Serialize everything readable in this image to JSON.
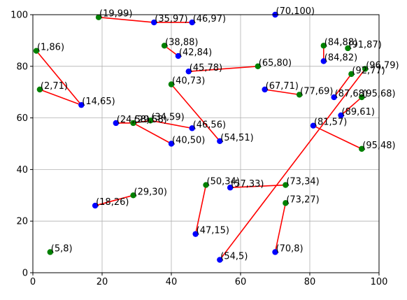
{
  "chart_data": {
    "type": "scatter",
    "title": "",
    "xlabel": "",
    "ylabel": "",
    "xlim": [
      0,
      100
    ],
    "ylim": [
      0,
      100
    ],
    "xticks": [
      0,
      20,
      40,
      60,
      80,
      100
    ],
    "yticks": [
      0,
      20,
      40,
      60,
      80,
      100
    ],
    "grid": true,
    "colors": {
      "blue": "#0000ff",
      "green": "#008000",
      "segment": "#ff0000",
      "grid": "#b0b0b0"
    },
    "blue_points": [
      [
        35,
        97
      ],
      [
        46,
        97
      ],
      [
        70,
        100
      ],
      [
        42,
        84
      ],
      [
        84,
        82
      ],
      [
        45,
        78
      ],
      [
        67,
        71
      ],
      [
        87,
        68
      ],
      [
        14,
        65
      ],
      [
        89,
        61
      ],
      [
        24,
        58
      ],
      [
        81,
        57
      ],
      [
        46,
        56
      ],
      [
        54,
        51
      ],
      [
        40,
        50
      ],
      [
        57,
        33
      ],
      [
        18,
        26
      ],
      [
        47,
        15
      ],
      [
        54,
        5
      ],
      [
        70,
        8
      ]
    ],
    "green_points": [
      [
        19,
        99
      ],
      [
        38,
        88
      ],
      [
        84,
        88
      ],
      [
        91,
        87
      ],
      [
        1,
        86
      ],
      [
        65,
        80
      ],
      [
        96,
        79
      ],
      [
        92,
        77
      ],
      [
        40,
        73
      ],
      [
        2,
        71
      ],
      [
        77,
        69
      ],
      [
        95,
        68
      ],
      [
        34,
        59
      ],
      [
        29,
        58
      ],
      [
        95,
        48
      ],
      [
        50,
        34
      ],
      [
        73,
        34
      ],
      [
        29,
        30
      ],
      [
        73,
        27
      ],
      [
        5,
        8
      ]
    ],
    "segments": [
      [
        [
          19,
          99
        ],
        [
          35,
          97
        ]
      ],
      [
        [
          35,
          97
        ],
        [
          46,
          97
        ]
      ],
      [
        [
          38,
          88
        ],
        [
          42,
          84
        ]
      ],
      [
        [
          84,
          88
        ],
        [
          84,
          82
        ]
      ],
      [
        [
          45,
          78
        ],
        [
          65,
          80
        ]
      ],
      [
        [
          1,
          86
        ],
        [
          14,
          65
        ]
      ],
      [
        [
          2,
          71
        ],
        [
          14,
          65
        ]
      ],
      [
        [
          67,
          71
        ],
        [
          77,
          69
        ]
      ],
      [
        [
          87,
          68
        ],
        [
          92,
          77
        ]
      ],
      [
        [
          89,
          61
        ],
        [
          95,
          68
        ]
      ],
      [
        [
          24,
          58
        ],
        [
          29,
          58
        ]
      ],
      [
        [
          29,
          58
        ],
        [
          34,
          59
        ]
      ],
      [
        [
          34,
          59
        ],
        [
          46,
          56
        ]
      ],
      [
        [
          29,
          58
        ],
        [
          40,
          50
        ]
      ],
      [
        [
          40,
          73
        ],
        [
          54,
          51
        ]
      ],
      [
        [
          81,
          57
        ],
        [
          95,
          48
        ]
      ],
      [
        [
          54,
          5
        ],
        [
          96,
          79
        ]
      ],
      [
        [
          50,
          34
        ],
        [
          47,
          15
        ]
      ],
      [
        [
          57,
          33
        ],
        [
          73,
          34
        ]
      ],
      [
        [
          73,
          27
        ],
        [
          70,
          8
        ]
      ],
      [
        [
          18,
          26
        ],
        [
          29,
          30
        ]
      ]
    ],
    "labels": [
      "(19,99)",
      "(35,97)",
      "(46,97)",
      "(70,100)",
      "(38,88)",
      "(42,84)",
      "(84,88)",
      "(91,87)",
      "(84,82)",
      "(1,86)",
      "(45,78)",
      "(65,80)",
      "(96,79)",
      "(92,77)",
      "(40,73)",
      "(2,71)",
      "(67,71)",
      "(77,69)",
      "(87,68)",
      "(95,68)",
      "(14,65)",
      "(89,61)",
      "(24,58)",
      "(29,58)",
      "(34,59)",
      "(81,57)",
      "(46,56)",
      "(54,51)",
      "(40,50)",
      "(95,48)",
      "(50,34)",
      "(57,33)",
      "(73,34)",
      "(29,30)",
      "(73,27)",
      "(18,26)",
      "(47,15)",
      "(5,8)",
      "(54,5)",
      "(70,8)"
    ]
  }
}
